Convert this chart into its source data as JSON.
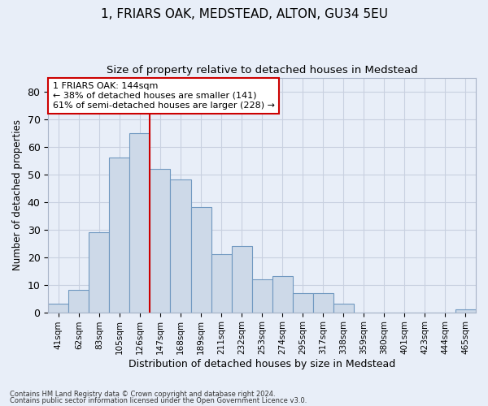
{
  "title1": "1, FRIARS OAK, MEDSTEAD, ALTON, GU34 5EU",
  "title2": "Size of property relative to detached houses in Medstead",
  "xlabel": "Distribution of detached houses by size in Medstead",
  "ylabel": "Number of detached properties",
  "bar_color": "#cdd9e8",
  "bar_edge_color": "#7098c0",
  "categories": [
    "41sqm",
    "62sqm",
    "83sqm",
    "105sqm",
    "126sqm",
    "147sqm",
    "168sqm",
    "189sqm",
    "211sqm",
    "232sqm",
    "253sqm",
    "274sqm",
    "295sqm",
    "317sqm",
    "338sqm",
    "359sqm",
    "380sqm",
    "401sqm",
    "423sqm",
    "444sqm",
    "465sqm"
  ],
  "values": [
    3,
    8,
    29,
    56,
    65,
    52,
    48,
    38,
    21,
    24,
    12,
    13,
    7,
    7,
    3,
    0,
    0,
    0,
    0,
    0,
    1
  ],
  "vline_x": 5.5,
  "vline_color": "#cc0000",
  "annotation_text": "1 FRIARS OAK: 144sqm\n← 38% of detached houses are smaller (141)\n61% of semi-detached houses are larger (228) →",
  "annotation_box_color": "#ffffff",
  "annotation_box_edgecolor": "#cc0000",
  "ylim": [
    0,
    85
  ],
  "yticks": [
    0,
    10,
    20,
    30,
    40,
    50,
    60,
    70,
    80
  ],
  "grid_color": "#c8d0e0",
  "background_color": "#e8eef8",
  "footer1": "Contains HM Land Registry data © Crown copyright and database right 2024.",
  "footer2": "Contains public sector information licensed under the Open Government Licence v3.0."
}
